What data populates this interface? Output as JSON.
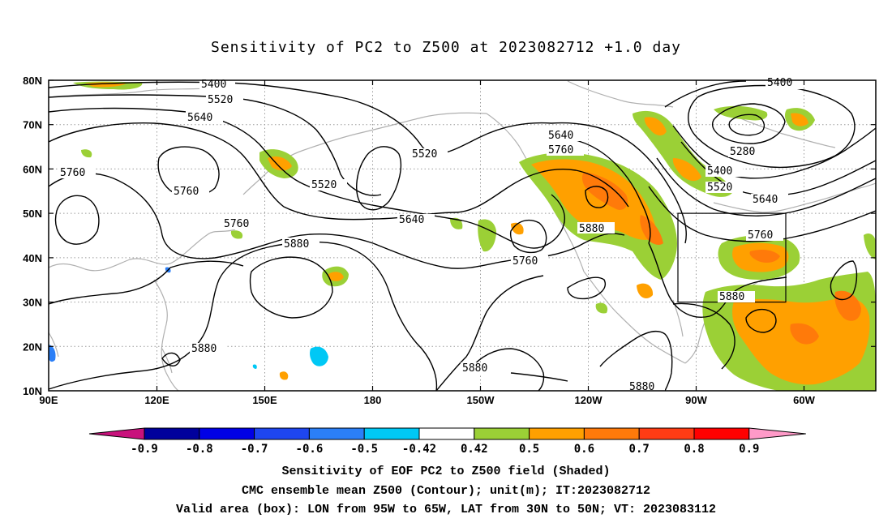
{
  "title": "Sensitivity of PC2 to Z500 at 2023082712 +1.0 day",
  "lat_labels": [
    "80N",
    "70N",
    "60N",
    "50N",
    "40N",
    "30N",
    "20N",
    "10N"
  ],
  "lon_labels": [
    "90E",
    "120E",
    "150E",
    "180",
    "150W",
    "120W",
    "90W",
    "60W"
  ],
  "contour_labels": [
    "5400",
    "5520",
    "5640",
    "5760",
    "5760",
    "5760",
    "5520",
    "5520",
    "5640",
    "5640",
    "5760",
    "5880",
    "5760",
    "5880",
    "5880",
    "5400",
    "5280",
    "5400",
    "5520",
    "5640",
    "5760",
    "5880",
    "5880",
    "5880"
  ],
  "colorbar": {
    "labels": [
      "-0.9",
      "-0.8",
      "-0.7",
      "-0.6",
      "-0.5",
      "-0.42",
      "0.42",
      "0.5",
      "0.6",
      "0.7",
      "0.8",
      "0.9"
    ],
    "colors": [
      "#6a0a8c",
      "#00009c",
      "#0000e6",
      "#1e46f0",
      "#2b7ff7",
      "#00c8f5",
      "#ffffff",
      "#9bd036",
      "#ffa000",
      "#ff7a0a",
      "#ff3c14",
      "#ff0000"
    ],
    "end_left": "#c8127c",
    "end_right": "#ff9ac8"
  },
  "captions": [
    "Sensitivity of EOF PC2 to Z500 field (Shaded)",
    "CMC ensemble mean Z500 (Contour); unit(m); IT:2023082712",
    "Valid area (box): LON from 95W to 65W, LAT from 30N to 50N; VT: 2023083112"
  ]
}
